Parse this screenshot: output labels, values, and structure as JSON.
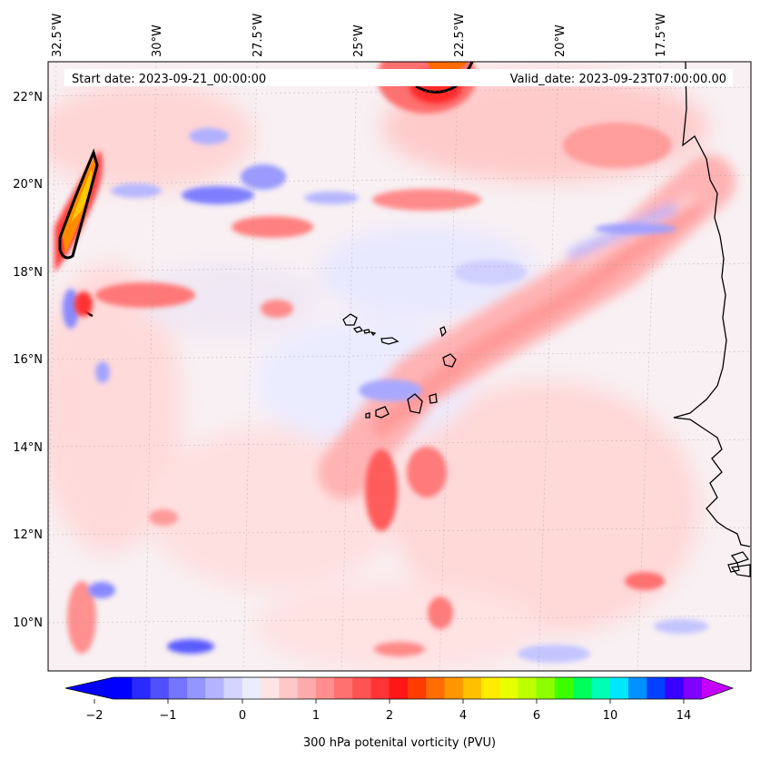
{
  "header": {
    "start_date": "Start date: 2023-09-21_00:00:00",
    "valid_date": "Valid_date: 2023-09-23T07:00:00.00"
  },
  "axes": {
    "longitude_labels": [
      "32.5°W",
      "30°W",
      "27.5°W",
      "25°W",
      "22.5°W",
      "20°W",
      "17.5°W"
    ],
    "latitude_labels": [
      "22°N",
      "20°N",
      "18°N",
      "16°N",
      "14°N",
      "12°N",
      "10°N"
    ]
  },
  "colorbar": {
    "label": "300 hPa potenital vorticity (PVU)",
    "tick_labels": [
      "−2",
      "−1",
      "0",
      "1",
      "2",
      "4",
      "6",
      "10",
      "14"
    ],
    "colors": [
      "#0000ff",
      "#2a2aff",
      "#5050ff",
      "#7474ff",
      "#9595ff",
      "#b3b3ff",
      "#d4d4ff",
      "#ececff",
      "#ffe4e4",
      "#ffc8c8",
      "#ffabab",
      "#ff8e8e",
      "#ff7070",
      "#ff5252",
      "#ff3434",
      "#ff1616",
      "#ff3c00",
      "#ff6c00",
      "#ff9600",
      "#ffc000",
      "#ffec00",
      "#e8ff00",
      "#bcff00",
      "#8cff00",
      "#3cff00",
      "#00ff5a",
      "#00ffb4",
      "#00e8ff",
      "#0090ff",
      "#0040ff",
      "#3800ff",
      "#8000ff"
    ],
    "under_color": "#0000ff",
    "over_color": "#c400ff"
  },
  "map": {
    "background_color": "#f6f2f4",
    "projection": "equirectangular",
    "coastline_color": "#000000"
  }
}
